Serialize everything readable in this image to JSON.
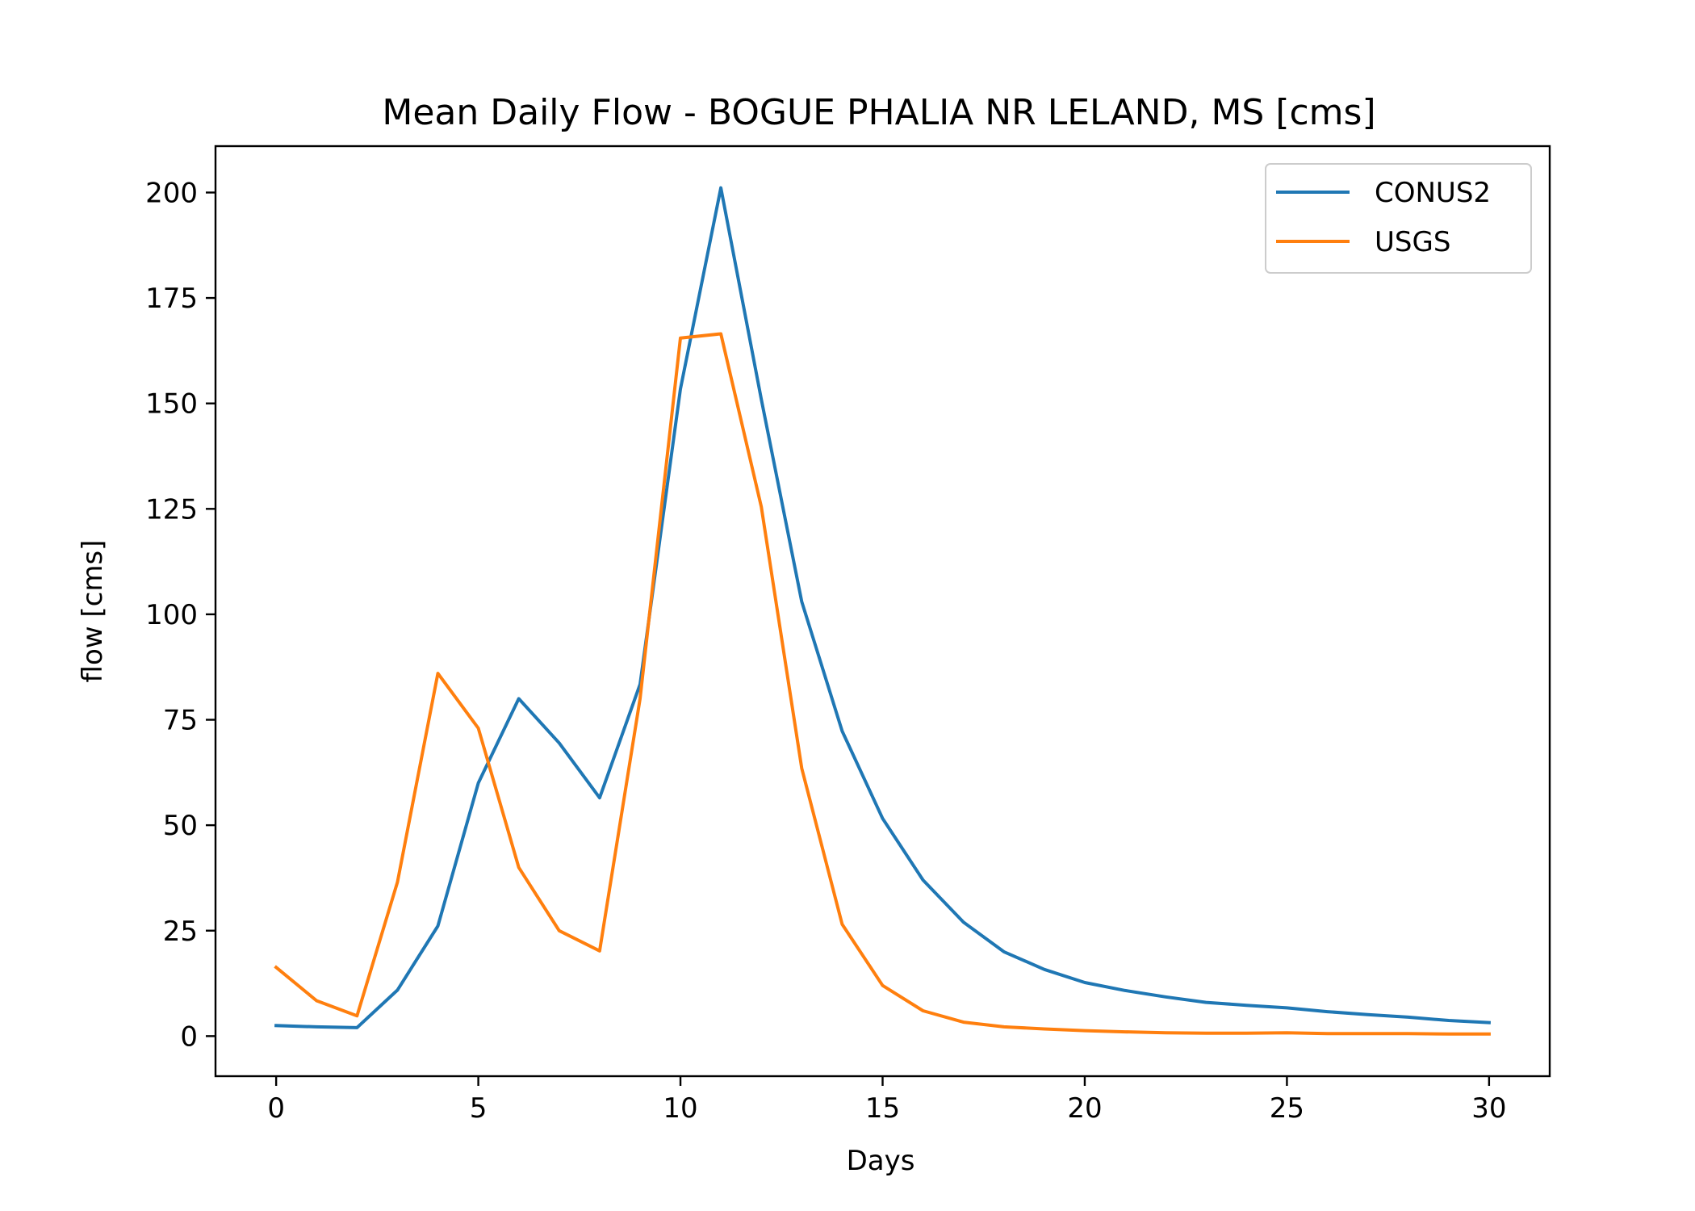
{
  "chart_data": {
    "type": "line",
    "title": "Mean Daily Flow - BOGUE PHALIA NR LELAND, MS [cms]",
    "xlabel": "Days",
    "ylabel": "flow [cms]",
    "xlim": [
      -1.5,
      31.5
    ],
    "ylim": [
      -9.5,
      211
    ],
    "xticks": [
      0,
      5,
      10,
      15,
      20,
      25,
      30
    ],
    "yticks": [
      0,
      25,
      50,
      75,
      100,
      125,
      150,
      175,
      200
    ],
    "grid": false,
    "legend_position": "top-right",
    "x": [
      0,
      1,
      2,
      3,
      4,
      5,
      6,
      7,
      8,
      9,
      10,
      11,
      12,
      13,
      14,
      15,
      16,
      17,
      18,
      19,
      20,
      21,
      22,
      23,
      24,
      25,
      26,
      27,
      28,
      29,
      30
    ],
    "series": [
      {
        "name": "CONUS2",
        "color": "#1f77b4",
        "values": [
          2.5,
          2.2,
          2.0,
          10.9,
          26.1,
          60.0,
          80.0,
          69.5,
          56.5,
          83.4,
          153.4,
          201.1,
          151.0,
          103.0,
          72.3,
          51.6,
          37.0,
          27.0,
          20.0,
          15.8,
          12.7,
          10.8,
          9.3,
          8.0,
          7.3,
          6.7,
          5.8,
          5.1,
          4.5,
          3.7,
          3.2
        ]
      },
      {
        "name": "USGS",
        "color": "#ff7f0e",
        "values": [
          16.3,
          8.4,
          4.8,
          36.5,
          86.0,
          73.0,
          40.0,
          25.0,
          20.2,
          80.0,
          165.5,
          166.5,
          125.5,
          63.5,
          26.5,
          12.0,
          6.0,
          3.3,
          2.2,
          1.7,
          1.3,
          1.0,
          0.8,
          0.7,
          0.7,
          0.8,
          0.6,
          0.6,
          0.6,
          0.5,
          0.5
        ]
      }
    ]
  }
}
